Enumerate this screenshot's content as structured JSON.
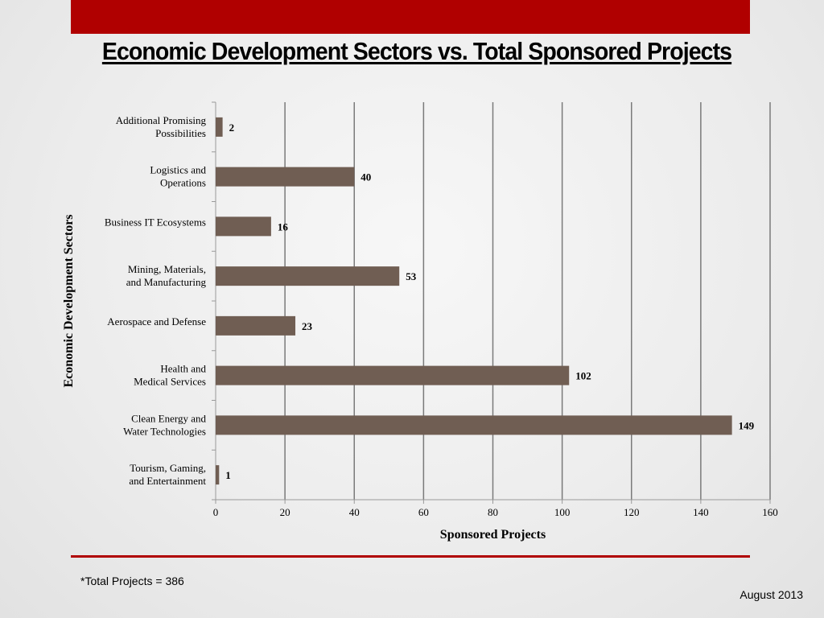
{
  "slide": {
    "title": "Economic Development Sectors vs. Total Sponsored Projects",
    "footnote": "*Total Projects = 386",
    "date": "August 2013"
  },
  "colors": {
    "bar": "#705e53",
    "accent": "#b00000",
    "grid": "#7a7a7a"
  },
  "chart_data": {
    "type": "bar",
    "orientation": "horizontal",
    "categories": [
      [
        "Additional Promising",
        "Possibilities"
      ],
      [
        "Logistics and",
        "Operations"
      ],
      [
        "Business IT Ecosystems"
      ],
      [
        "Mining, Materials,",
        "and Manufacturing"
      ],
      [
        "Aerospace and Defense"
      ],
      [
        "Health and",
        "Medical Services"
      ],
      [
        "Clean Energy and",
        "Water Technologies"
      ],
      [
        "Tourism, Gaming,",
        "and Entertainment"
      ]
    ],
    "values": [
      2,
      40,
      16,
      53,
      23,
      102,
      149,
      1
    ],
    "data_labels": [
      "2",
      "40",
      "16",
      "53",
      "23",
      "102",
      "149",
      "1"
    ],
    "xlabel": "Sponsored Projects",
    "ylabel": "Economic Development Sectors",
    "xlim": [
      0,
      160
    ],
    "xticks": [
      0,
      20,
      40,
      60,
      80,
      100,
      120,
      140,
      160
    ],
    "grid": "vertical major gridlines",
    "legend": "none"
  }
}
